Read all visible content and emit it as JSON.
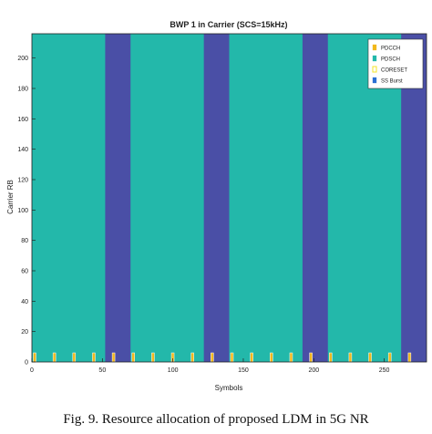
{
  "figure": {
    "caption": "Fig. 9.   Resource allocation of proposed LDM in 5G NR"
  },
  "chart_data": {
    "type": "heatmap",
    "title": "BWP 1 in Carrier (SCS=15kHz)",
    "xlabel": "Symbols",
    "ylabel": "Carrier RB",
    "xlim": [
      0,
      280
    ],
    "ylim": [
      0,
      216
    ],
    "xticks": [
      0,
      50,
      100,
      150,
      200,
      250
    ],
    "yticks": [
      0,
      20,
      40,
      60,
      80,
      100,
      120,
      140,
      160,
      180,
      200
    ],
    "grid": false,
    "legend_position": "top-right",
    "legend": [
      {
        "label": "PDCCH",
        "color": "#f2b81c"
      },
      {
        "label": "PDSCH",
        "color": "#23b8aa"
      },
      {
        "label": "CORESET",
        "color": "#f5e52a"
      },
      {
        "label": "SS Burst",
        "color": "#2a6fd4"
      }
    ],
    "background": {
      "name": "PDSCH",
      "color": "#23b8aa"
    },
    "ss_burst_bands": {
      "name": "SS Burst",
      "color": "#4a4fa6",
      "x_ranges": [
        [
          52,
          70
        ],
        [
          122,
          140
        ],
        [
          192,
          210
        ],
        [
          262,
          280
        ]
      ]
    },
    "pdcch_markers": {
      "name": "PDCCH",
      "color": "#f2b81c",
      "x": [
        0,
        14,
        28,
        42,
        56,
        70,
        84,
        98,
        112,
        126,
        140,
        154,
        168,
        182,
        196,
        210,
        224,
        238,
        252,
        266
      ],
      "y_range": [
        0,
        6
      ]
    }
  }
}
